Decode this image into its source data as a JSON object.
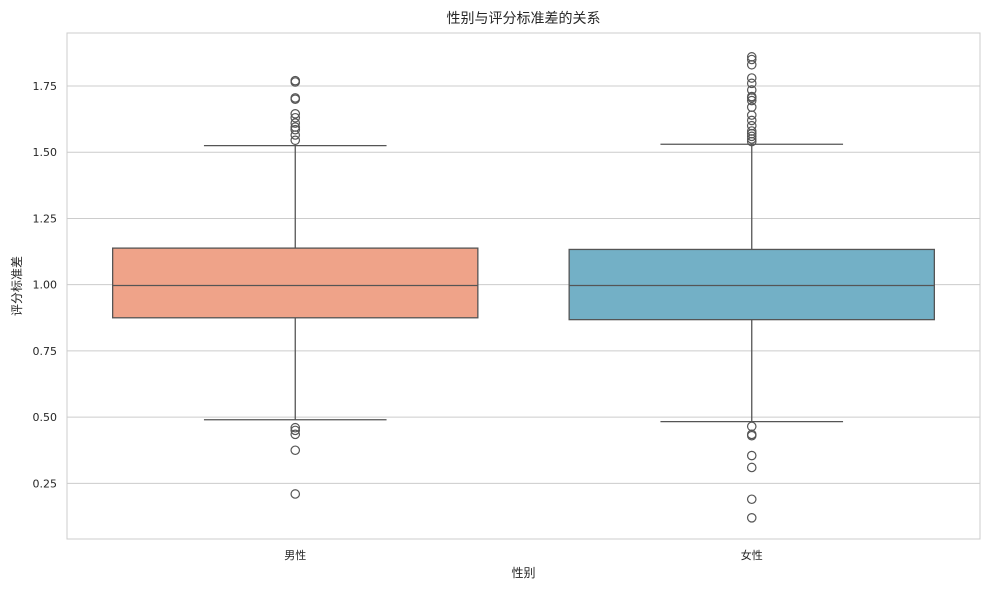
{
  "chart_data": {
    "type": "box",
    "title": "性别与评分标准差的关系",
    "xlabel": "性别",
    "ylabel": "评分标准差",
    "categories": [
      "男性",
      "女性"
    ],
    "ylim": [
      0.04,
      1.95
    ],
    "yticks": [
      0.25,
      0.5,
      0.75,
      1.0,
      1.25,
      1.5,
      1.75
    ],
    "ytick_labels": [
      "0.25",
      "0.50",
      "0.75",
      "1.00",
      "1.25",
      "1.50",
      "1.75"
    ],
    "grid": "horizontal",
    "boxes": [
      {
        "category": "男性",
        "color": "#EFA389",
        "whisker_low": 0.49,
        "q1": 0.875,
        "median": 0.997,
        "q3": 1.138,
        "whisker_high": 1.525,
        "outliers": [
          0.21,
          0.375,
          0.435,
          0.45,
          0.46,
          1.545,
          1.565,
          1.585,
          1.595,
          1.61,
          1.63,
          1.645,
          1.7,
          1.705,
          1.765,
          1.77
        ]
      },
      {
        "category": "女性",
        "color": "#73B0C6",
        "whisker_low": 0.483,
        "q1": 0.868,
        "median": 0.997,
        "q3": 1.133,
        "whisker_high": 1.53,
        "outliers": [
          0.12,
          0.19,
          0.31,
          0.355,
          0.43,
          0.435,
          0.465,
          1.54,
          1.55,
          1.56,
          1.57,
          1.58,
          1.6,
          1.62,
          1.64,
          1.67,
          1.695,
          1.705,
          1.71,
          1.735,
          1.76,
          1.78,
          1.83,
          1.85,
          1.86
        ]
      }
    ]
  }
}
